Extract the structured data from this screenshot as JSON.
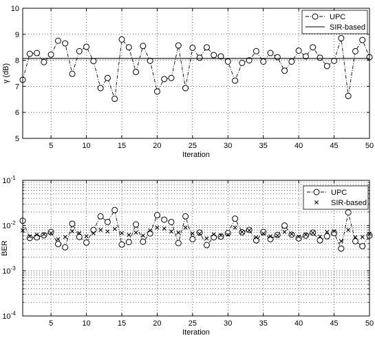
{
  "chart_data": [
    {
      "type": "line",
      "xlabel": "Iteration",
      "ylabel": "γ (dB)",
      "xlim": [
        1,
        50
      ],
      "ylim": [
        5,
        10
      ],
      "xticks": [
        5,
        10,
        15,
        20,
        25,
        30,
        35,
        40,
        45,
        50
      ],
      "yticks": [
        5,
        6,
        7,
        8,
        9,
        10
      ],
      "grid": true,
      "legend_position": "top-right",
      "x": [
        1,
        2,
        3,
        4,
        5,
        6,
        7,
        8,
        9,
        10,
        11,
        12,
        13,
        14,
        15,
        16,
        17,
        18,
        19,
        20,
        21,
        22,
        23,
        24,
        25,
        26,
        27,
        28,
        29,
        30,
        31,
        32,
        33,
        34,
        35,
        36,
        37,
        38,
        39,
        40,
        41,
        42,
        43,
        44,
        45,
        46,
        47,
        48,
        49,
        50
      ],
      "series": [
        {
          "name": "UPC",
          "style": "dash-dot line with circle markers",
          "values": [
            7.25,
            8.25,
            8.28,
            7.93,
            8.22,
            8.75,
            8.65,
            7.48,
            8.35,
            8.52,
            7.97,
            6.93,
            7.32,
            6.52,
            8.8,
            8.5,
            7.55,
            8.55,
            7.98,
            6.8,
            7.28,
            7.32,
            8.57,
            6.93,
            8.48,
            8.1,
            8.5,
            8.2,
            8.15,
            7.95,
            7.22,
            7.9,
            8.0,
            8.35,
            7.95,
            8.28,
            8.12,
            7.6,
            7.95,
            8.37,
            8.15,
            8.5,
            8.1,
            7.78,
            7.98,
            8.85,
            6.63,
            8.35,
            8.78,
            8.12
          ]
        },
        {
          "name": "SIR-based",
          "style": "solid line",
          "values": [
            8.07,
            8.07,
            8.07,
            8.07,
            8.07,
            8.07,
            8.07,
            8.07,
            8.07,
            8.07,
            8.07,
            8.07,
            8.07,
            8.07,
            8.07,
            8.07,
            8.07,
            8.07,
            8.07,
            8.07,
            8.07,
            8.07,
            8.07,
            8.07,
            8.07,
            8.07,
            8.07,
            8.07,
            8.07,
            8.07,
            8.07,
            8.07,
            8.07,
            8.07,
            8.07,
            8.07,
            8.07,
            8.07,
            8.07,
            8.07,
            8.07,
            8.07,
            8.07,
            8.07,
            8.07,
            8.07,
            8.07,
            8.07,
            8.07,
            8.07
          ]
        }
      ]
    },
    {
      "type": "line",
      "xlabel": "Iteration",
      "ylabel": "BER",
      "xlim": [
        1,
        50
      ],
      "ylim": [
        0.0001,
        0.1
      ],
      "yscale": "log",
      "xticks": [
        5,
        10,
        15,
        20,
        25,
        30,
        35,
        40,
        45,
        50
      ],
      "yticks": [
        0.0001,
        0.001,
        0.01,
        0.1
      ],
      "yticklabels": [
        {
          "base": "10",
          "exp": "-4"
        },
        {
          "base": "10",
          "exp": "-3"
        },
        {
          "base": "10",
          "exp": "-2"
        },
        {
          "base": "10",
          "exp": "-1"
        }
      ],
      "grid": true,
      "legend_position": "top-right",
      "x": [
        1,
        2,
        3,
        4,
        5,
        6,
        7,
        8,
        9,
        10,
        11,
        12,
        13,
        14,
        15,
        16,
        17,
        18,
        19,
        20,
        21,
        22,
        23,
        24,
        25,
        26,
        27,
        28,
        29,
        30,
        31,
        32,
        33,
        34,
        35,
        36,
        37,
        38,
        39,
        40,
        41,
        42,
        43,
        44,
        45,
        46,
        47,
        48,
        49,
        50
      ],
      "series": [
        {
          "name": "UPC",
          "style": "dash-dot line with circle markers",
          "values": [
            0.0128,
            0.0053,
            0.0055,
            0.0061,
            0.0072,
            0.0039,
            0.0033,
            0.011,
            0.0056,
            0.0042,
            0.008,
            0.016,
            0.012,
            0.022,
            0.0038,
            0.0043,
            0.0106,
            0.0044,
            0.0067,
            0.017,
            0.0135,
            0.012,
            0.0041,
            0.016,
            0.005,
            0.007,
            0.0037,
            0.0055,
            0.0057,
            0.0068,
            0.0142,
            0.0071,
            0.008,
            0.0047,
            0.0072,
            0.005,
            0.0062,
            0.01,
            0.0063,
            0.0052,
            0.006,
            0.007,
            0.0047,
            0.0058,
            0.0068,
            0.0031,
            0.0195,
            0.0045,
            0.0035,
            0.006
          ]
        },
        {
          "name": "SIR-based",
          "style": "x markers",
          "values": [
            0.0078,
            0.0058,
            0.0063,
            0.0064,
            0.0068,
            0.005,
            0.0056,
            0.0075,
            0.0068,
            0.0058,
            0.0068,
            0.008,
            0.0074,
            0.0084,
            0.0068,
            0.0062,
            0.007,
            0.006,
            0.0078,
            0.009,
            0.0086,
            0.0074,
            0.007,
            0.009,
            0.0067,
            0.0066,
            0.0052,
            0.0064,
            0.0061,
            0.0063,
            0.009,
            0.0072,
            0.0078,
            0.0055,
            0.0067,
            0.0058,
            0.006,
            0.0072,
            0.0065,
            0.0057,
            0.0063,
            0.0069,
            0.0057,
            0.0072,
            0.0075,
            0.0045,
            0.008,
            0.0055,
            0.0056,
            0.0066
          ]
        }
      ]
    }
  ]
}
